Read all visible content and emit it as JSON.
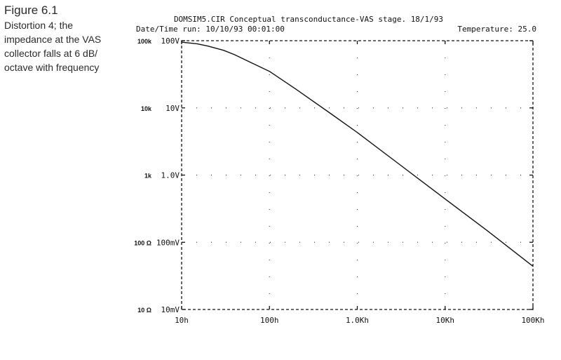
{
  "caption": {
    "figure_label": "Figure 6.1",
    "lines": [
      "Distortion 4; the",
      "impedance at the VAS",
      "collector falls at 6 dB/",
      "octave with frequency"
    ]
  },
  "header": {
    "title": "DOMSIM5.CIR Conceptual transconductance-VAS stage. 18/1/93",
    "date_time": "Date/Time run: 10/10/93  00:01:00",
    "temperature": "Temperature: 25.0"
  },
  "chart_data": {
    "type": "line",
    "title": "DOMSIM5.CIR Conceptual transconductance-VAS stage. 18/1/93",
    "xscale": "log",
    "yscale": "log",
    "xlim": [
      10,
      100000
    ],
    "ylim": [
      0.01,
      100
    ],
    "x_ticks": [
      10,
      100,
      1000,
      10000,
      100000
    ],
    "x_tick_labels": [
      "10h",
      "100h",
      "1.0Kh",
      "10Kh",
      "100Kh"
    ],
    "y_ticks": [
      100,
      10,
      1,
      0.1,
      0.01
    ],
    "y_tick_labels": [
      "100V",
      "10V",
      "1.0V",
      "100mV",
      "10mV"
    ],
    "y_secondary_labels": [
      "100k",
      "10k",
      "1k",
      "100 Ω",
      "10 Ω"
    ],
    "grid": "dotted",
    "series": [
      {
        "x": [
          10,
          15,
          20,
          30,
          40,
          60,
          100,
          200,
          500,
          1000,
          3000,
          10000,
          30000,
          100000
        ],
        "y": [
          95,
          90,
          83,
          72,
          62,
          48,
          35,
          19,
          8.2,
          4.3,
          1.45,
          0.44,
          0.15,
          0.044
        ]
      }
    ]
  }
}
